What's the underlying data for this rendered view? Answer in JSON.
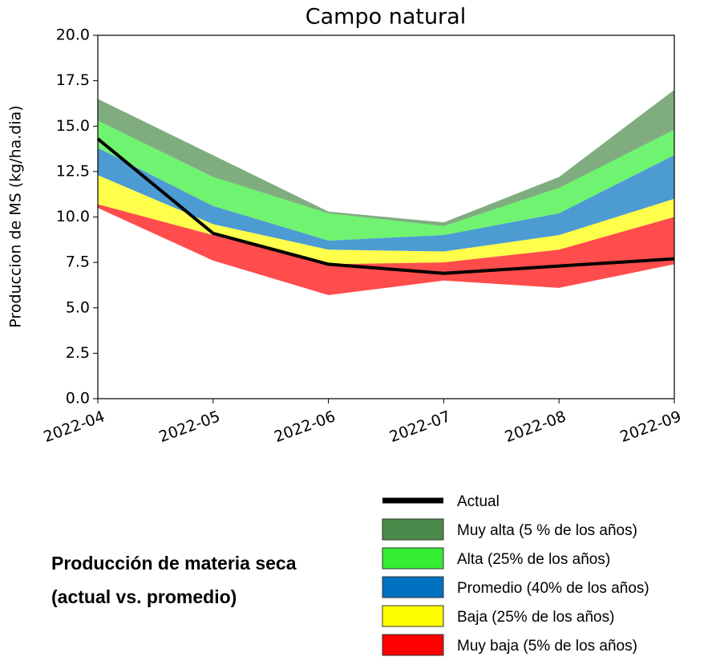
{
  "chart_data": {
    "type": "band",
    "title": "Campo natural",
    "y_label": "Produccion de MS (kg/ha.dia)",
    "note": [
      "Producción de materia seca",
      "(actual vs. promedio)"
    ],
    "categories": [
      "2022-04",
      "2022-05",
      "2022-06",
      "2022-07",
      "2022-08",
      "2022-09"
    ],
    "ylim": [
      0,
      20
    ],
    "yticks": [
      {
        "value": 0,
        "label": "0.0"
      },
      {
        "value": 2.5,
        "label": "2.5"
      },
      {
        "value": 5,
        "label": "5.0"
      },
      {
        "value": 7.5,
        "label": "7.5"
      },
      {
        "value": 10,
        "label": "10.0"
      },
      {
        "value": 12.5,
        "label": "12.5"
      },
      {
        "value": 15,
        "label": "15.0"
      },
      {
        "value": 17.5,
        "label": "17.5"
      },
      {
        "value": 20,
        "label": "20.0"
      }
    ],
    "line": {
      "name": "Actual",
      "color": "#000000",
      "values": [
        14.3,
        9.1,
        7.4,
        6.9,
        7.3,
        7.7
      ]
    },
    "series": [
      {
        "name": "Muy alta (5 % de los años)",
        "color": "#4a8a4a",
        "low": [
          15.3,
          12.2,
          10.2,
          9.5,
          11.6,
          14.8
        ],
        "high": [
          16.5,
          13.4,
          10.3,
          9.7,
          12.2,
          17.0
        ]
      },
      {
        "name": "Alta (25% de los años)",
        "color": "#33ee33",
        "low": [
          13.8,
          10.6,
          8.7,
          9.0,
          10.2,
          13.4
        ],
        "high": [
          15.3,
          12.2,
          10.2,
          9.5,
          11.6,
          14.8
        ]
      },
      {
        "name": "Promedio (40% de los años)",
        "color": "#0070c0",
        "low": [
          12.3,
          9.6,
          8.2,
          8.1,
          9.0,
          11.0
        ],
        "high": [
          13.8,
          10.6,
          8.7,
          9.0,
          10.2,
          13.4
        ]
      },
      {
        "name": "Baja (25% de los años)",
        "color": "#ffff00",
        "low": [
          10.7,
          9.0,
          7.4,
          7.5,
          8.2,
          10.0
        ],
        "high": [
          12.3,
          9.6,
          8.2,
          8.1,
          9.0,
          11.0
        ]
      },
      {
        "name": "Muy baja (5% de los años)",
        "color": "#ff0000",
        "low": [
          10.5,
          7.6,
          5.7,
          6.5,
          6.1,
          7.4
        ],
        "high": [
          10.7,
          9.0,
          7.4,
          7.5,
          8.2,
          10.0
        ]
      }
    ]
  }
}
